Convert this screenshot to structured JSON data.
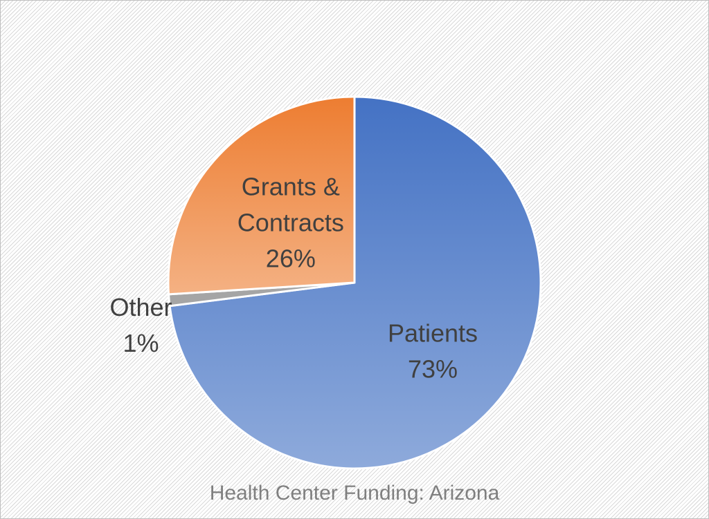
{
  "chart_data": {
    "type": "pie",
    "title": "Health Center Funding: Arizona",
    "slices": [
      {
        "name": "Patients",
        "value": 73,
        "label": "73%",
        "color": "#4472c4",
        "color_light": "#8eaadb"
      },
      {
        "name": "Other",
        "value": 1,
        "label": "1%",
        "color": "#a5a5a5",
        "color_light": "#a5a5a5"
      },
      {
        "name": "Grants & Contracts",
        "value": 26,
        "label": "26%",
        "color": "#ed7d31",
        "color_light": "#f4b183"
      }
    ],
    "start_angle_deg": 0,
    "direction": "clockwise",
    "legend": "none"
  }
}
